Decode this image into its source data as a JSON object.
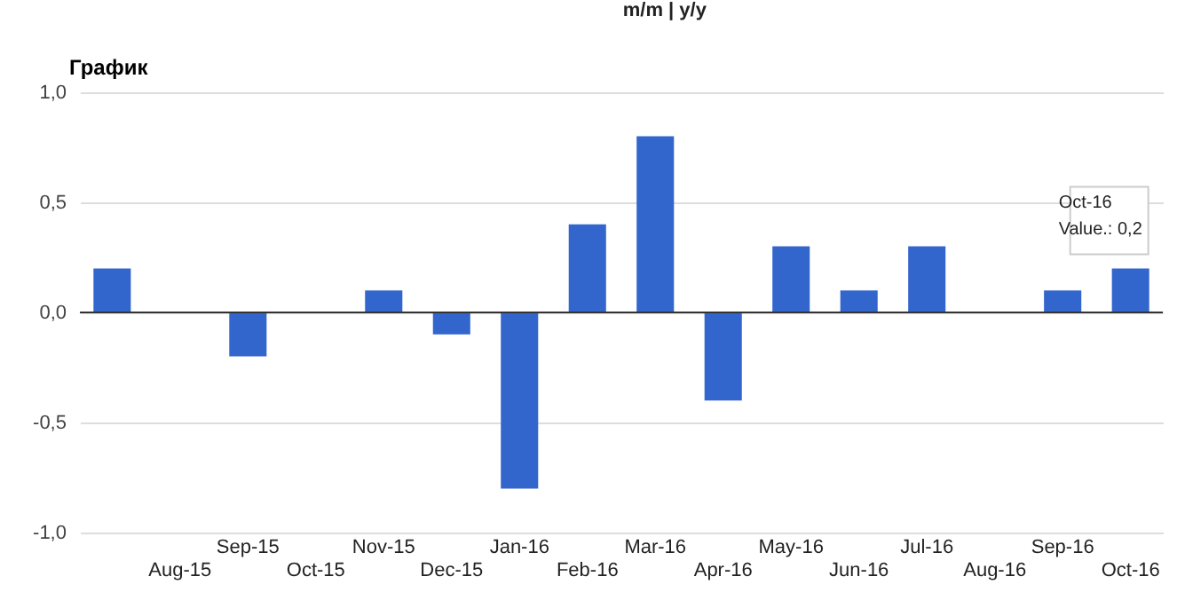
{
  "chart_data": {
    "type": "bar",
    "title": "График",
    "annotations": [
      "m/m | y/y",
      {
        "text": "Oct-16\nValue.: 0,2",
        "x": "Oct-16",
        "y": 0.2
      }
    ],
    "categories": [
      null,
      "Aug-15",
      "Sep-15",
      "Oct-15",
      "Nov-15",
      "Dec-15",
      "Jan-16",
      "Feb-16",
      "Mar-16",
      "Apr-16",
      "May-16",
      "Jun-16",
      "Jul-16",
      "Aug-16",
      "Sep-16",
      "Oct-16"
    ],
    "values": [
      0.2,
      0,
      -0.2,
      0,
      0.1,
      -0.1,
      -0.8,
      0.4,
      0.8,
      -0.4,
      0.3,
      0.1,
      0.3,
      0,
      0.1,
      0.2
    ],
    "color": "#3366cc",
    "ylim": [
      -1,
      1
    ],
    "yticks": [
      {
        "value": -1,
        "label": "-1,0"
      },
      {
        "value": -0.5,
        "label": "-0,5"
      },
      {
        "value": 0,
        "label": "0,0"
      },
      {
        "value": 0.5,
        "label": "0,5"
      },
      {
        "value": 1,
        "label": "1,0"
      }
    ],
    "ref_lines": [
      {
        "axis": "y",
        "value": 0,
        "color": "#333333"
      }
    ],
    "grid": "y"
  }
}
